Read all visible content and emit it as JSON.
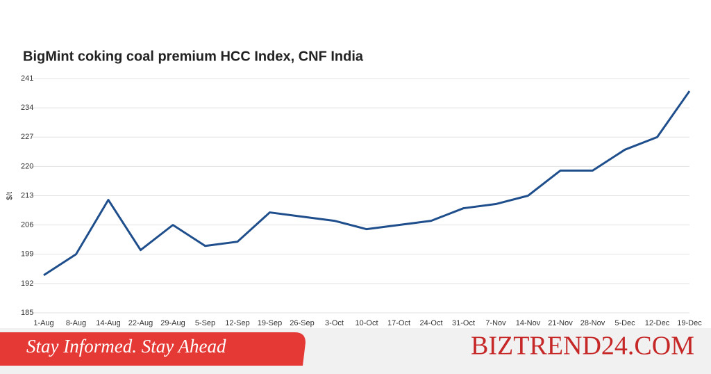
{
  "chart_data": {
    "type": "line",
    "title": "BigMint coking coal premium HCC Index, CNF India",
    "y_label": "$/t",
    "categories": [
      "1-Aug",
      "8-Aug",
      "14-Aug",
      "22-Aug",
      "29-Aug",
      "5-Sep",
      "12-Sep",
      "19-Sep",
      "26-Sep",
      "3-Oct",
      "10-Oct",
      "17-Oct",
      "24-Oct",
      "31-Oct",
      "7-Nov",
      "14-Nov",
      "21-Nov",
      "28-Nov",
      "5-Dec",
      "12-Dec",
      "19-Dec"
    ],
    "values": [
      194,
      199,
      212,
      200,
      206,
      201,
      202,
      209,
      208,
      207,
      205,
      206,
      207,
      210,
      211,
      213,
      219,
      219,
      224,
      227,
      238
    ],
    "color": "#1f4e8c",
    "ylim": [
      185,
      241
    ],
    "yticks": [
      185,
      192,
      199,
      206,
      213,
      220,
      227,
      234,
      241
    ],
    "grid": true
  },
  "banner": {
    "tagline": "Stay Informed. Stay Ahead",
    "brand": "BIZTREND24.COM"
  }
}
